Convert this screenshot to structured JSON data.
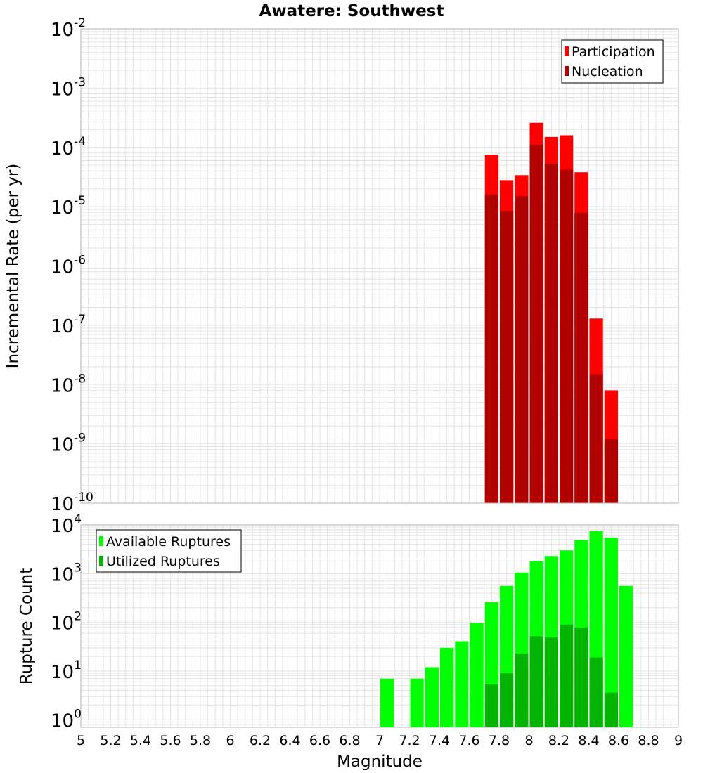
{
  "title": "Awatere: Southwest",
  "colors": {
    "participation": "#ff0000",
    "nucleation": "#b00000",
    "available": "#00ff00",
    "utilized": "#00b400",
    "grid": "#e4e4e4",
    "frame": "#b4b4b4"
  },
  "x_axis": {
    "label": "Magnitude",
    "range": [
      5,
      9
    ],
    "ticks": [
      "5",
      "5.2",
      "5.4",
      "5.6",
      "5.8",
      "6",
      "6.2",
      "6.4",
      "6.6",
      "6.8",
      "7",
      "7.2",
      "7.4",
      "7.6",
      "7.8",
      "8",
      "8.2",
      "8.4",
      "8.6",
      "8.8",
      "9"
    ]
  },
  "chart_data": [
    {
      "type": "bar",
      "name": "rate",
      "ylabel": "Incremental Rate (per yr)",
      "y_scale": "log",
      "ylim": [
        1e-10,
        0.01
      ],
      "y_ticks": [
        {
          "value": 1e-10,
          "base": "10",
          "exp": "-10"
        },
        {
          "value": 1e-09,
          "base": "10",
          "exp": "-9"
        },
        {
          "value": 1e-08,
          "base": "10",
          "exp": "-8"
        },
        {
          "value": 1e-07,
          "base": "10",
          "exp": "-7"
        },
        {
          "value": 1e-06,
          "base": "10",
          "exp": "-6"
        },
        {
          "value": 1e-05,
          "base": "10",
          "exp": "-5"
        },
        {
          "value": 0.0001,
          "base": "10",
          "exp": "-4"
        },
        {
          "value": 0.001,
          "base": "10",
          "exp": "-3"
        },
        {
          "value": 0.01,
          "base": "10",
          "exp": "-2"
        }
      ],
      "grid": true,
      "legend_position": "top-right",
      "bin_width": 0.1,
      "x": [
        7.75,
        7.85,
        7.95,
        8.05,
        8.15,
        8.25,
        8.35,
        8.45,
        8.55
      ],
      "series": [
        {
          "name": "Participation",
          "color_key": "participation",
          "values": [
            7.5e-05,
            2.8e-05,
            3.4e-05,
            0.00026,
            0.00015,
            0.00016,
            3.8e-05,
            1.3e-07,
            8e-09
          ]
        },
        {
          "name": "Nucleation",
          "color_key": "nucleation",
          "values": [
            1.6e-05,
            8.5e-06,
            1.5e-05,
            0.00011,
            5.3e-05,
            4.2e-05,
            7.9e-06,
            1.5e-08,
            1.2e-09
          ]
        }
      ]
    },
    {
      "type": "bar",
      "name": "count",
      "ylabel": "Rupture Count",
      "y_scale": "log",
      "ylim": [
        0.7,
        10000
      ],
      "y_ticks": [
        {
          "value": 1,
          "base": "10",
          "exp": "0"
        },
        {
          "value": 10,
          "base": "10",
          "exp": "1"
        },
        {
          "value": 100,
          "base": "10",
          "exp": "2"
        },
        {
          "value": 1000,
          "base": "10",
          "exp": "3"
        },
        {
          "value": 10000,
          "base": "10",
          "exp": "4"
        }
      ],
      "grid": true,
      "legend_position": "top-left",
      "bin_width": 0.1,
      "x": [
        7.05,
        7.15,
        7.25,
        7.35,
        7.45,
        7.55,
        7.65,
        7.75,
        7.85,
        7.95,
        8.05,
        8.15,
        8.25,
        8.35,
        8.45,
        8.55,
        8.65
      ],
      "series": [
        {
          "name": "Available Ruptures",
          "color_key": "available",
          "values": [
            7,
            0,
            7,
            12,
            30,
            41,
            97,
            260,
            560,
            1050,
            1800,
            2300,
            3000,
            4900,
            7500,
            5500,
            560
          ]
        },
        {
          "name": "Utilized Ruptures",
          "color_key": "utilized",
          "values": [
            0,
            0,
            0,
            0,
            0,
            0,
            0,
            5.3,
            9,
            23,
            52,
            49,
            90,
            78,
            19,
            3.6,
            0
          ]
        }
      ]
    }
  ]
}
